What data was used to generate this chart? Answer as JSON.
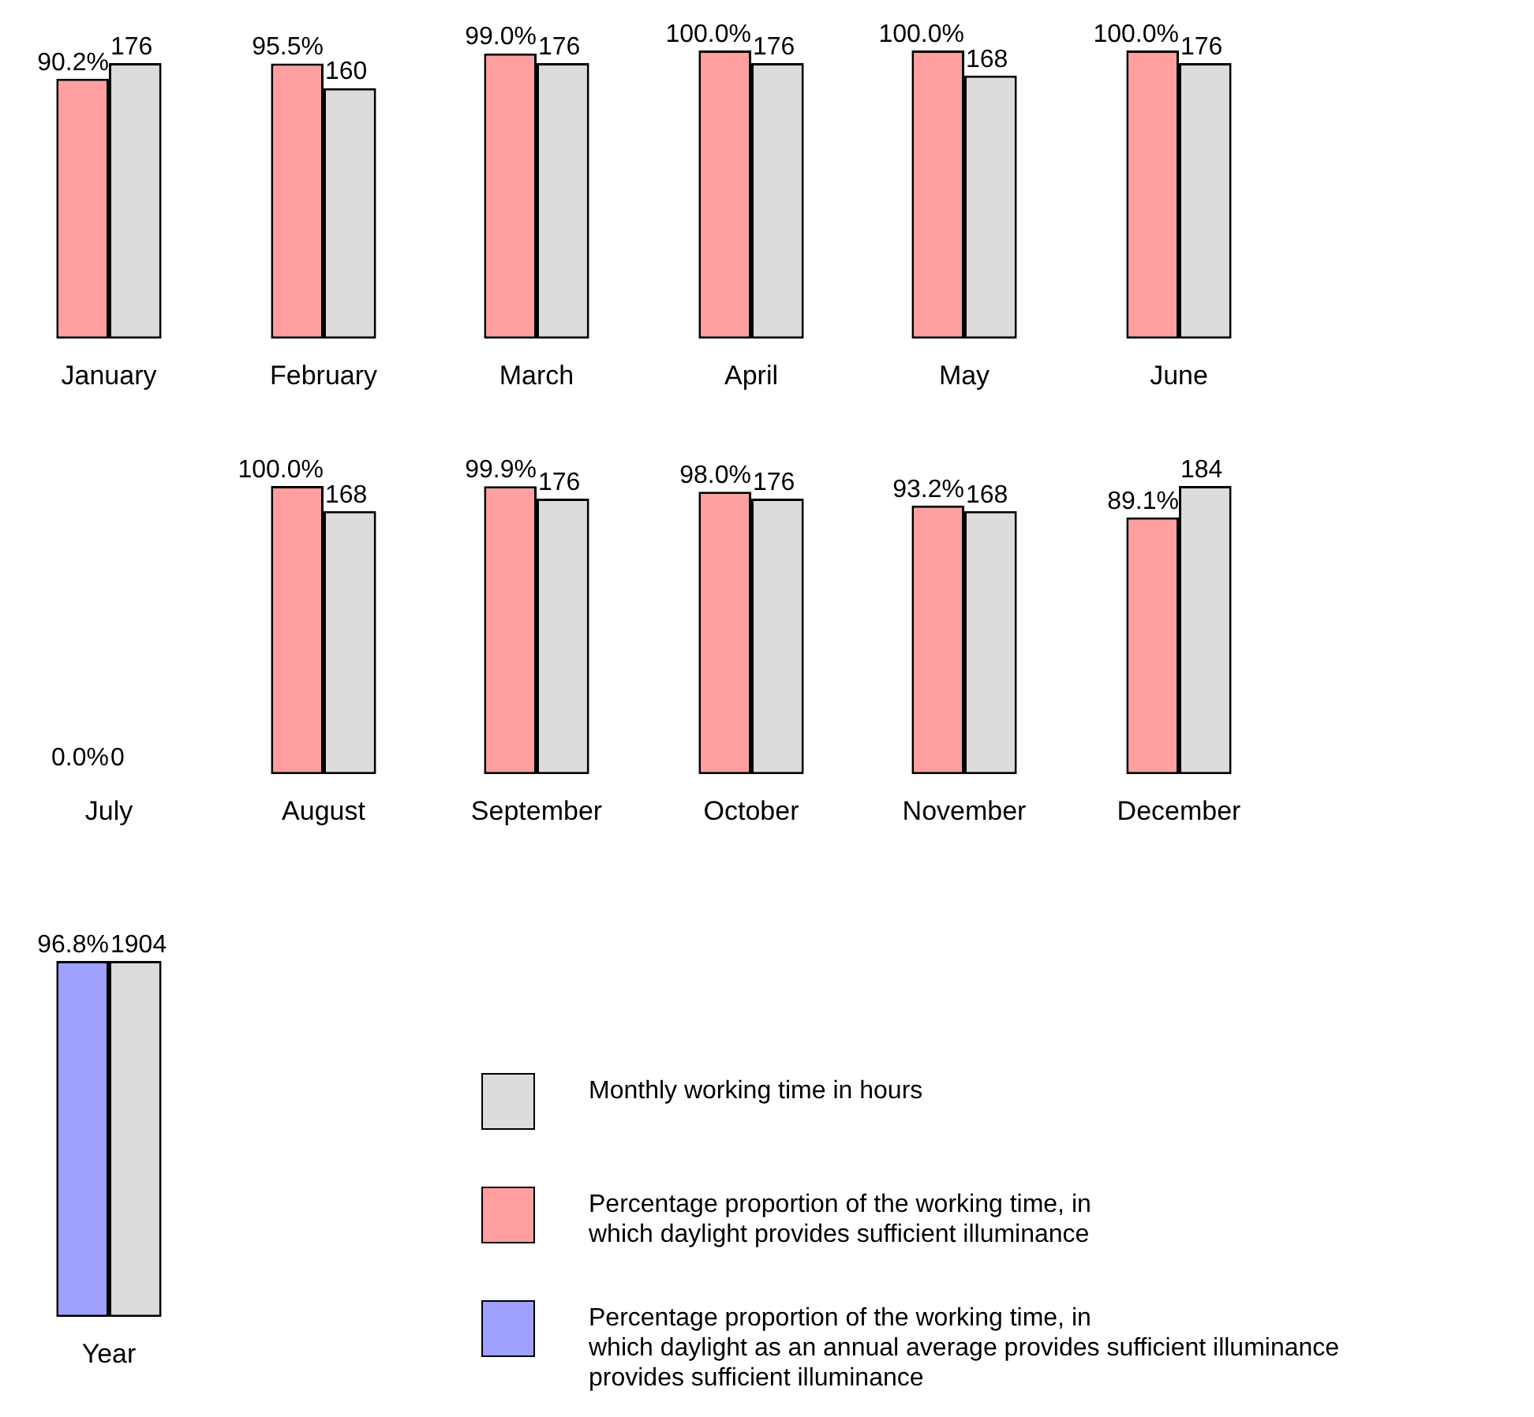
{
  "chart_data": [
    {
      "type": "bar",
      "categories": [
        "January"
      ],
      "tick_labels": "x",
      "legend": "bottom right",
      "series": [
        {
          "name": "Percentage proportion of the working time, in\nwhich daylight provides sufficient illuminance",
          "color": "#ff9f9f",
          "values": [
            90.2
          ],
          "value_labels": [
            "90.2%"
          ]
        },
        {
          "name": "Monthly working time in hours",
          "color": "#dcdcdc",
          "axis": "y2",
          "values": [
            176
          ],
          "value_labels": [
            "176"
          ]
        }
      ]
    },
    {
      "type": "bar",
      "categories": [
        "February"
      ],
      "tick_labels": "x",
      "series": [
        {
          "color": "#ff9f9f",
          "values": [
            95.5
          ],
          "value_labels": [
            "95.5%"
          ]
        },
        {
          "color": "#dcdcdc",
          "axis": "y2",
          "values": [
            160
          ],
          "value_labels": [
            "160"
          ]
        }
      ]
    },
    {
      "type": "bar",
      "categories": [
        "March"
      ],
      "tick_labels": "x",
      "series": [
        {
          "color": "#ff9f9f",
          "values": [
            99.0
          ],
          "value_labels": [
            "99.0%"
          ]
        },
        {
          "color": "#dcdcdc",
          "axis": "y2",
          "values": [
            176
          ],
          "value_labels": [
            "176"
          ]
        }
      ]
    },
    {
      "type": "bar",
      "categories": [
        "April"
      ],
      "tick_labels": "x",
      "series": [
        {
          "color": "#ff9f9f",
          "values": [
            100.0
          ],
          "value_labels": [
            "100.0%"
          ]
        },
        {
          "color": "#dcdcdc",
          "axis": "y2",
          "values": [
            176
          ],
          "value_labels": [
            "176"
          ]
        }
      ]
    },
    {
      "type": "bar",
      "categories": [
        "May"
      ],
      "tick_labels": "x",
      "series": [
        {
          "color": "#ff9f9f",
          "values": [
            100.0
          ],
          "value_labels": [
            "100.0%"
          ]
        },
        {
          "color": "#dcdcdc",
          "axis": "y2",
          "values": [
            168
          ],
          "value_labels": [
            "168"
          ]
        }
      ]
    },
    {
      "type": "bar",
      "categories": [
        "June"
      ],
      "tick_labels": "x",
      "series": [
        {
          "color": "#ff9f9f",
          "values": [
            100.0
          ],
          "value_labels": [
            "100.0%"
          ]
        },
        {
          "color": "#dcdcdc",
          "axis": "y2",
          "values": [
            176
          ],
          "value_labels": [
            "176"
          ]
        }
      ]
    },
    {
      "type": "other",
      "categories": [
        "July"
      ],
      "series": [
        {
          "color": "#ff9f9f",
          "values": [
            0.0
          ],
          "value_labels": [
            "0.0%"
          ]
        },
        {
          "color": "#dcdcdc",
          "axis": "y2",
          "values": [
            0
          ],
          "value_labels": [
            "0"
          ]
        }
      ]
    },
    {
      "type": "bar",
      "categories": [
        "August"
      ],
      "tick_labels": "x",
      "series": [
        {
          "color": "#ff9f9f",
          "values": [
            100.0
          ],
          "value_labels": [
            "100.0%"
          ]
        },
        {
          "color": "#dcdcdc",
          "axis": "y2",
          "values": [
            168
          ],
          "value_labels": [
            "168"
          ]
        }
      ]
    },
    {
      "type": "bar",
      "categories": [
        "September"
      ],
      "tick_labels": "x",
      "series": [
        {
          "color": "#ff9f9f",
          "values": [
            99.9
          ],
          "value_labels": [
            "99.9%"
          ]
        },
        {
          "color": "#dcdcdc",
          "axis": "y2",
          "values": [
            176
          ],
          "value_labels": [
            "176"
          ]
        }
      ]
    },
    {
      "type": "bar",
      "categories": [
        "October"
      ],
      "tick_labels": "x",
      "series": [
        {
          "color": "#ff9f9f",
          "values": [
            98.0
          ],
          "value_labels": [
            "98.0%"
          ]
        },
        {
          "color": "#dcdcdc",
          "axis": "y2",
          "values": [
            176
          ],
          "value_labels": [
            "176"
          ]
        }
      ]
    },
    {
      "type": "bar",
      "categories": [
        "November"
      ],
      "tick_labels": "x",
      "series": [
        {
          "color": "#ff9f9f",
          "values": [
            93.2
          ],
          "value_labels": [
            "93.2%"
          ]
        },
        {
          "color": "#dcdcdc",
          "axis": "y2",
          "values": [
            168
          ],
          "value_labels": [
            "168"
          ]
        }
      ]
    },
    {
      "type": "bar",
      "categories": [
        "December"
      ],
      "tick_labels": "x",
      "series": [
        {
          "color": "#ff9f9f",
          "values": [
            89.1
          ],
          "value_labels": [
            "89.1%"
          ]
        },
        {
          "color": "#dcdcdc",
          "axis": "y2",
          "values": [
            184
          ],
          "value_labels": [
            "184"
          ]
        }
      ]
    },
    {
      "type": "bar",
      "categories": [
        "Year"
      ],
      "tick_labels": "x",
      "legend": "right",
      "series": [
        {
          "name": "Percentage proportion of the working time, in\nwhich daylight as an annual average provides sufficient illuminance\nprovides sufficient illuminance",
          "color": "#a0a0ff",
          "values": [
            96.8
          ],
          "value_labels": [
            "96.8%"
          ]
        },
        {
          "name": "Monthly working time in hours",
          "color": "#dcdcdc",
          "axis": "y2",
          "values": [
            1904
          ],
          "value_labels": [
            "1904"
          ]
        }
      ]
    }
  ]
}
